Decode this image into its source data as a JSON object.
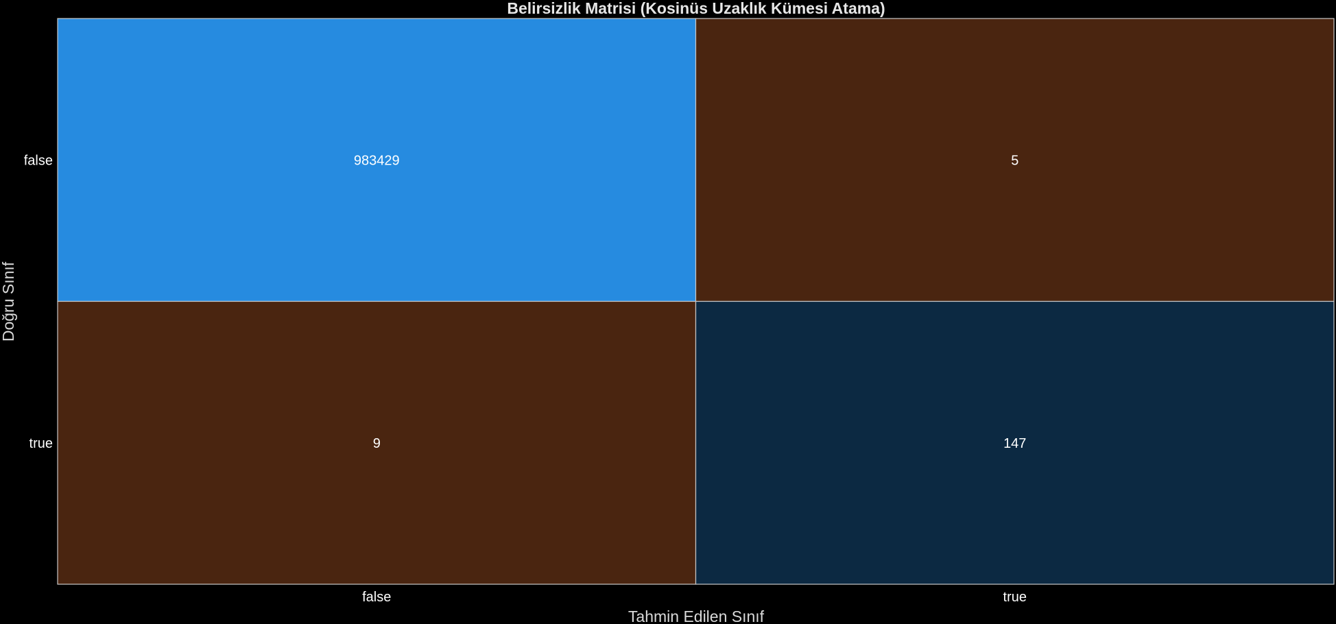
{
  "chart_data": {
    "type": "heatmap",
    "title": "Belirsizlik Matrisi (Kosinüs Uzaklık Kümesi Atama)",
    "xlabel": "Tahmin Edilen Sınıf",
    "ylabel": "Doğru Sınıf",
    "x_categories": [
      "false",
      "true"
    ],
    "y_categories": [
      "false",
      "true"
    ],
    "values": [
      [
        983429,
        5
      ],
      [
        9,
        147
      ]
    ],
    "cell_colors": [
      [
        "#268be0",
        "#4a2510"
      ],
      [
        "#4a2510",
        "#0c2942"
      ]
    ],
    "grid": false,
    "legend": "none"
  }
}
